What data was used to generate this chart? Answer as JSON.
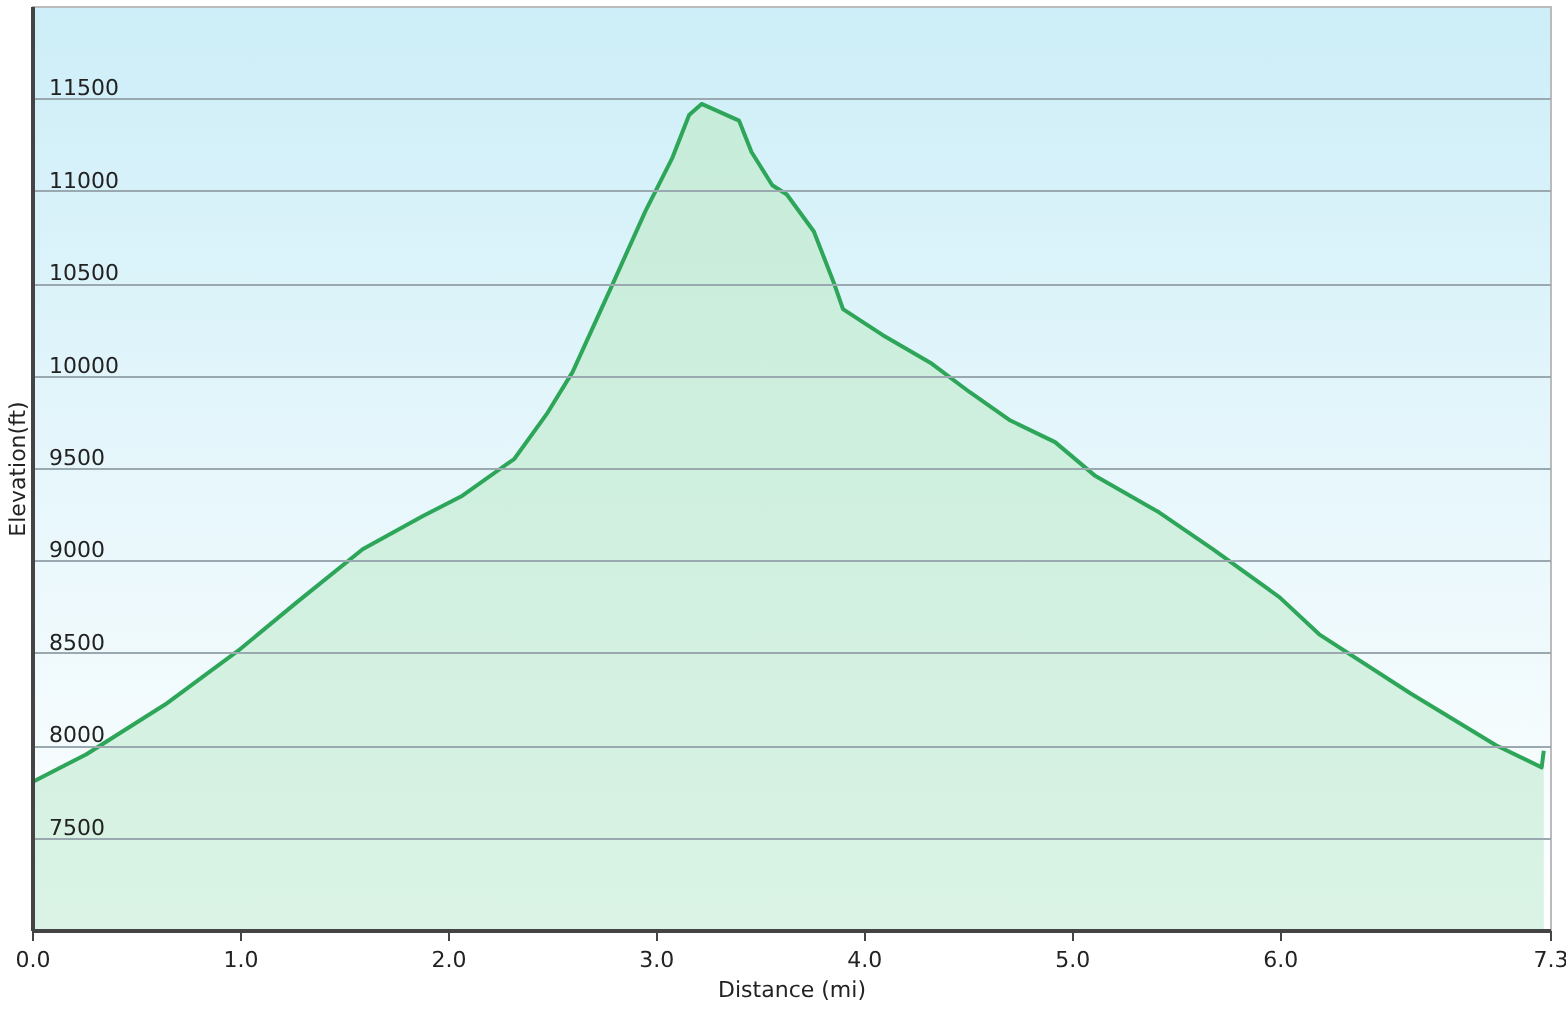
{
  "chart_data": {
    "type": "area",
    "xlabel": "Distance  (mi)",
    "ylabel": "Elevation(ft)",
    "x": [
      0,
      0.26,
      0.64,
      0.99,
      1.27,
      1.59,
      1.88,
      2.07,
      2.32,
      2.48,
      2.6,
      2.79,
      2.95,
      3.08,
      3.16,
      3.22,
      3.4,
      3.46,
      3.56,
      3.63,
      3.76,
      3.86,
      3.9,
      4.09,
      4.32,
      4.51,
      4.7,
      4.92,
      5.11,
      5.42,
      5.68,
      6.0,
      6.19,
      6.63,
      7.04,
      7.26,
      7.27
    ],
    "series": [
      {
        "color": "#2ea65a",
        "values": [
          7800,
          7950,
          8220,
          8510,
          8770,
          9060,
          9240,
          9350,
          9550,
          9800,
          10020,
          10490,
          10890,
          11180,
          11410,
          11470,
          11380,
          11210,
          11030,
          10980,
          10780,
          10490,
          10360,
          10220,
          10070,
          9910,
          9760,
          9640,
          9460,
          9260,
          9060,
          8800,
          8600,
          8280,
          8000,
          7880,
          7970
        ]
      }
    ],
    "xlim": [
      0,
      7.3
    ],
    "xticks": [
      {
        "value": 0,
        "label": "0.0"
      },
      {
        "value": 1,
        "label": "1.0"
      },
      {
        "value": 2,
        "label": "2.0"
      },
      {
        "value": 3,
        "label": "3.0"
      },
      {
        "value": 4,
        "label": "4.0"
      },
      {
        "value": 5,
        "label": "5.0"
      },
      {
        "value": 6,
        "label": "6.0"
      },
      7.3
    ],
    "ylim": [
      7000,
      12000
    ],
    "yticks": [
      7500,
      8000,
      8500,
      9000,
      9500,
      10000,
      10500,
      11000,
      11500
    ],
    "grid": "y"
  }
}
